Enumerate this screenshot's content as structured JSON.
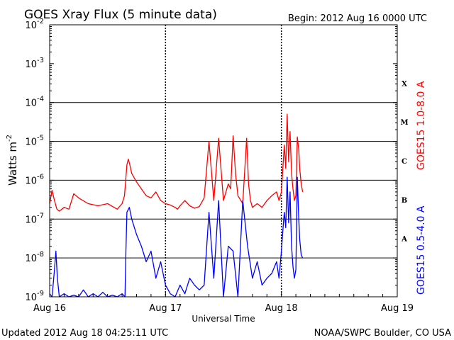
{
  "header": {
    "title": "GOES Xray Flux (5 minute data)",
    "begin": "Begin:  2012 Aug 16 0000 UTC"
  },
  "footer": {
    "updated": "Updated 2012 Aug 18 04:25:11 UTC",
    "credit": "NOAA/SWPC Boulder, CO USA"
  },
  "chart_data": {
    "type": "line",
    "title": "GOES Xray Flux (5 minute data)",
    "xlabel": "Universal Time",
    "ylabel": "Watts m",
    "ylabel_exponent": "-2",
    "yscale": "log",
    "ylim": [
      1e-09,
      0.01
    ],
    "xlim": [
      0,
      72
    ],
    "x_unit": "hours since 2012 Aug 16 0000 UTC",
    "x_ticks": [
      {
        "x": 0,
        "label": "Aug 16"
      },
      {
        "x": 24,
        "label": "Aug 17"
      },
      {
        "x": 48,
        "label": "Aug 18"
      },
      {
        "x": 72,
        "label": "Aug 19"
      }
    ],
    "y_ticks": [
      {
        "exp": -2,
        "label": "10",
        "sup": "-2"
      },
      {
        "exp": -3,
        "label": "10",
        "sup": "-3"
      },
      {
        "exp": -4,
        "label": "10",
        "sup": "-4"
      },
      {
        "exp": -5,
        "label": "10",
        "sup": "-5"
      },
      {
        "exp": -6,
        "label": "10",
        "sup": "-6"
      },
      {
        "exp": -7,
        "label": "10",
        "sup": "-7"
      },
      {
        "exp": -8,
        "label": "10",
        "sup": "-8"
      },
      {
        "exp": -9,
        "label": "10",
        "sup": "-9"
      }
    ],
    "flare_classes": [
      {
        "label": "X",
        "level": 0.0001
      },
      {
        "label": "M",
        "level": 1e-05
      },
      {
        "label": "C",
        "level": 1e-06
      },
      {
        "label": "B",
        "level": 1e-07
      },
      {
        "label": "A",
        "level": 1e-08
      }
    ],
    "grid": true,
    "series": [
      {
        "name": "GOES15 1.0-8.0 A",
        "color": "#ff0000",
        "x": [
          0.0,
          0.5,
          1.0,
          1.5,
          2.0,
          3.0,
          4.0,
          5.0,
          6.0,
          8.0,
          10.0,
          12.0,
          14.0,
          15.0,
          15.5,
          16.0,
          16.3,
          16.6,
          17.0,
          18.0,
          19.0,
          20.0,
          21.0,
          22.0,
          23.0,
          24.0,
          25.0,
          26.0,
          26.5,
          27.0,
          28.0,
          29.0,
          30.0,
          31.0,
          32.0,
          33.0,
          34.0,
          35.0,
          36.0,
          37.0,
          37.5,
          38.0,
          38.5,
          39.0,
          40.0,
          40.8,
          41.2,
          41.6,
          42.0,
          43.0,
          44.0,
          45.0,
          46.0,
          47.0,
          47.5,
          48.0,
          48.3,
          48.6,
          48.9,
          49.2,
          49.5,
          49.8,
          50.1,
          50.4,
          50.7,
          51.0,
          51.3,
          51.6,
          51.8,
          52.1,
          52.4
        ],
        "y": [
          2.5e-07,
          5.5e-07,
          3e-07,
          1.8e-07,
          1.6e-07,
          2e-07,
          1.8e-07,
          4.5e-07,
          3.5e-07,
          2.5e-07,
          2.2e-07,
          2.5e-07,
          1.8e-07,
          2.5e-07,
          4e-07,
          2.5e-06,
          3.5e-06,
          2.5e-06,
          1.5e-06,
          9e-07,
          6e-07,
          4e-07,
          3.5e-07,
          5e-07,
          3e-07,
          2.5e-07,
          2.3e-07,
          2e-07,
          1.8e-07,
          2.2e-07,
          3e-07,
          2.2e-07,
          1.9e-07,
          2.1e-07,
          3.5e-07,
          1e-05,
          3e-07,
          1.2e-05,
          3e-07,
          8e-07,
          6e-07,
          1.4e-05,
          1.5e-06,
          4e-07,
          2.5e-07,
          1.2e-05,
          8e-07,
          3e-07,
          2e-07,
          2.5e-07,
          2e-07,
          3e-07,
          4e-07,
          5e-07,
          3e-07,
          5e-07,
          2e-06,
          8e-06,
          2e-06,
          5e-05,
          3e-06,
          1.8e-05,
          1.5e-06,
          6e-07,
          3e-07,
          4e-07,
          1.3e-05,
          6e-06,
          2e-06,
          8e-07,
          5e-07
        ]
      },
      {
        "name": "GOES15 0.5-4.0 A",
        "color": "#0000ff",
        "x": [
          0.0,
          0.5,
          1.0,
          1.3,
          1.6,
          2.0,
          3.0,
          4.0,
          5.0,
          6.0,
          7.0,
          8.0,
          9.0,
          10.0,
          11.0,
          12.0,
          13.0,
          14.0,
          15.0,
          15.6,
          15.8,
          16.0,
          16.5,
          17.0,
          18.0,
          19.0,
          20.0,
          21.0,
          22.0,
          23.0,
          24.0,
          25.0,
          26.0,
          27.0,
          28.0,
          29.0,
          30.0,
          31.0,
          32.0,
          33.0,
          34.0,
          35.0,
          36.0,
          37.0,
          38.0,
          39.0,
          40.0,
          41.0,
          42.0,
          43.0,
          44.0,
          45.0,
          46.0,
          47.0,
          47.5,
          48.0,
          48.3,
          48.6,
          48.9,
          49.2,
          49.5,
          49.8,
          50.1,
          50.4,
          50.7,
          51.0,
          51.3,
          51.6,
          51.8,
          52.1,
          52.4
        ],
        "y": [
          1.2e-09,
          1e-09,
          5e-09,
          1.5e-08,
          3e-09,
          1e-09,
          1.2e-09,
          1e-09,
          1.1e-09,
          1e-09,
          1.5e-09,
          1e-09,
          1.2e-09,
          1e-09,
          1.3e-09,
          1e-09,
          1.1e-09,
          1e-09,
          1.2e-09,
          1e-09,
          1.5e-08,
          1.5e-07,
          2e-07,
          1e-07,
          4e-08,
          2e-08,
          8e-09,
          1.5e-08,
          3e-09,
          8e-09,
          2e-09,
          1.2e-09,
          1e-09,
          2e-09,
          1.2e-09,
          3e-09,
          2e-09,
          1.5e-09,
          2e-09,
          1.5e-07,
          3e-09,
          3e-07,
          1e-09,
          2e-08,
          1.5e-08,
          1e-09,
          3e-07,
          2e-08,
          3e-09,
          8e-09,
          2e-09,
          3e-09,
          4e-09,
          8e-09,
          3e-09,
          1.5e-08,
          5e-08,
          1.5e-07,
          6e-08,
          1.2e-06,
          8e-08,
          5e-07,
          2e-08,
          6e-09,
          3e-09,
          5e-09,
          1.2e-06,
          1e-07,
          3e-08,
          1.2e-08,
          1e-08
        ]
      }
    ]
  }
}
